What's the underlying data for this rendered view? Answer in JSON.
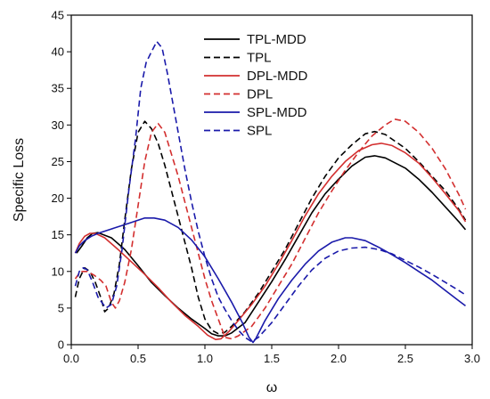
{
  "chart_data": {
    "type": "line",
    "title": "",
    "xlabel": "ω",
    "ylabel": "Specific Loss",
    "xlim": [
      0,
      3.0
    ],
    "ylim": [
      0,
      45
    ],
    "xticks": [
      "0.0",
      "0.5",
      "1.0",
      "1.5",
      "2.0",
      "2.5",
      "3.0"
    ],
    "yticks": [
      "0",
      "5",
      "10",
      "15",
      "20",
      "25",
      "30",
      "35",
      "40",
      "45"
    ],
    "legend_position": "top-center",
    "grid": false,
    "series": [
      {
        "name": "TPL-MDD",
        "color": "#000000",
        "dash": "solid",
        "points": [
          [
            0.04,
            12.5
          ],
          [
            0.08,
            13.5
          ],
          [
            0.12,
            14.6
          ],
          [
            0.16,
            15.2
          ],
          [
            0.2,
            15.3
          ],
          [
            0.3,
            14.6
          ],
          [
            0.4,
            13.0
          ],
          [
            0.5,
            10.8
          ],
          [
            0.6,
            8.5
          ],
          [
            0.7,
            6.7
          ],
          [
            0.8,
            5.0
          ],
          [
            0.9,
            3.5
          ],
          [
            1.0,
            2.2
          ],
          [
            1.05,
            1.5
          ],
          [
            1.1,
            1.2
          ],
          [
            1.15,
            1.2
          ],
          [
            1.2,
            1.6
          ],
          [
            1.3,
            3.0
          ],
          [
            1.4,
            5.8
          ],
          [
            1.5,
            8.6
          ],
          [
            1.6,
            11.6
          ],
          [
            1.7,
            14.8
          ],
          [
            1.8,
            18.0
          ],
          [
            1.9,
            20.6
          ],
          [
            2.0,
            22.6
          ],
          [
            2.1,
            24.4
          ],
          [
            2.2,
            25.6
          ],
          [
            2.27,
            25.8
          ],
          [
            2.35,
            25.5
          ],
          [
            2.5,
            24.1
          ],
          [
            2.6,
            22.6
          ],
          [
            2.7,
            20.8
          ],
          [
            2.8,
            18.8
          ],
          [
            2.9,
            16.8
          ],
          [
            2.95,
            15.7
          ]
        ]
      },
      {
        "name": "TPL",
        "color": "#000000",
        "dash": "dashed",
        "points": [
          [
            0.03,
            6.5
          ],
          [
            0.06,
            9.0
          ],
          [
            0.1,
            10.5
          ],
          [
            0.14,
            10.0
          ],
          [
            0.18,
            8.5
          ],
          [
            0.22,
            6.5
          ],
          [
            0.25,
            4.5
          ],
          [
            0.28,
            5.0
          ],
          [
            0.32,
            7.0
          ],
          [
            0.36,
            11.0
          ],
          [
            0.4,
            17.0
          ],
          [
            0.45,
            24.0
          ],
          [
            0.5,
            29.0
          ],
          [
            0.55,
            30.5
          ],
          [
            0.6,
            29.5
          ],
          [
            0.65,
            27.5
          ],
          [
            0.7,
            24.5
          ],
          [
            0.75,
            21.0
          ],
          [
            0.8,
            17.5
          ],
          [
            0.85,
            14.0
          ],
          [
            0.9,
            10.5
          ],
          [
            0.95,
            6.5
          ],
          [
            1.0,
            3.5
          ],
          [
            1.05,
            2.0
          ],
          [
            1.1,
            1.5
          ],
          [
            1.15,
            1.7
          ],
          [
            1.2,
            2.5
          ],
          [
            1.3,
            4.5
          ],
          [
            1.4,
            7.0
          ],
          [
            1.5,
            10.0
          ],
          [
            1.6,
            13.0
          ],
          [
            1.7,
            16.5
          ],
          [
            1.8,
            20.0
          ],
          [
            1.9,
            23.0
          ],
          [
            2.0,
            25.5
          ],
          [
            2.1,
            27.3
          ],
          [
            2.2,
            28.8
          ],
          [
            2.27,
            29.1
          ],
          [
            2.35,
            28.7
          ],
          [
            2.5,
            26.8
          ],
          [
            2.6,
            25.0
          ],
          [
            2.7,
            23.0
          ],
          [
            2.8,
            21.0
          ],
          [
            2.9,
            18.5
          ],
          [
            2.95,
            17.0
          ]
        ]
      },
      {
        "name": "DPL-MDD",
        "color": "#d32f2f",
        "dash": "solid",
        "points": [
          [
            0.03,
            12.5
          ],
          [
            0.06,
            13.8
          ],
          [
            0.1,
            14.8
          ],
          [
            0.14,
            15.2
          ],
          [
            0.18,
            15.2
          ],
          [
            0.25,
            14.6
          ],
          [
            0.35,
            13.0
          ],
          [
            0.45,
            11.3
          ],
          [
            0.55,
            9.6
          ],
          [
            0.65,
            7.8
          ],
          [
            0.75,
            5.8
          ],
          [
            0.85,
            4.0
          ],
          [
            0.95,
            2.5
          ],
          [
            1.02,
            1.3
          ],
          [
            1.08,
            0.7
          ],
          [
            1.12,
            0.8
          ],
          [
            1.18,
            1.8
          ],
          [
            1.25,
            3.3
          ],
          [
            1.35,
            5.5
          ],
          [
            1.45,
            8.0
          ],
          [
            1.55,
            11.0
          ],
          [
            1.65,
            14.2
          ],
          [
            1.75,
            17.6
          ],
          [
            1.85,
            20.6
          ],
          [
            1.95,
            23.0
          ],
          [
            2.05,
            25.0
          ],
          [
            2.15,
            26.5
          ],
          [
            2.25,
            27.3
          ],
          [
            2.32,
            27.5
          ],
          [
            2.4,
            27.2
          ],
          [
            2.5,
            26.2
          ],
          [
            2.6,
            24.8
          ],
          [
            2.7,
            22.8
          ],
          [
            2.8,
            20.6
          ],
          [
            2.9,
            18.3
          ],
          [
            2.95,
            16.8
          ]
        ]
      },
      {
        "name": "DPL",
        "color": "#d32f2f",
        "dash": "dashed",
        "points": [
          [
            0.03,
            9.0
          ],
          [
            0.07,
            10.0
          ],
          [
            0.12,
            10.0
          ],
          [
            0.17,
            9.5
          ],
          [
            0.22,
            8.8
          ],
          [
            0.26,
            8.0
          ],
          [
            0.3,
            5.8
          ],
          [
            0.33,
            5.0
          ],
          [
            0.36,
            6.0
          ],
          [
            0.4,
            8.5
          ],
          [
            0.45,
            13.0
          ],
          [
            0.5,
            19.0
          ],
          [
            0.55,
            25.0
          ],
          [
            0.6,
            29.0
          ],
          [
            0.65,
            30.2
          ],
          [
            0.7,
            29.0
          ],
          [
            0.75,
            26.0
          ],
          [
            0.8,
            23.0
          ],
          [
            0.85,
            19.5
          ],
          [
            0.9,
            16.0
          ],
          [
            0.95,
            12.5
          ],
          [
            1.0,
            9.0
          ],
          [
            1.05,
            6.0
          ],
          [
            1.1,
            3.5
          ],
          [
            1.15,
            1.0
          ],
          [
            1.2,
            0.8
          ],
          [
            1.25,
            1.2
          ],
          [
            1.35,
            2.5
          ],
          [
            1.45,
            5.0
          ],
          [
            1.55,
            8.0
          ],
          [
            1.65,
            11.0
          ],
          [
            1.75,
            14.5
          ],
          [
            1.85,
            18.0
          ],
          [
            1.95,
            21.0
          ],
          [
            2.05,
            23.8
          ],
          [
            2.15,
            26.3
          ],
          [
            2.25,
            28.5
          ],
          [
            2.35,
            30.0
          ],
          [
            2.42,
            30.8
          ],
          [
            2.5,
            30.5
          ],
          [
            2.6,
            29.0
          ],
          [
            2.7,
            26.8
          ],
          [
            2.8,
            24.0
          ],
          [
            2.9,
            20.5
          ],
          [
            2.95,
            18.5
          ]
        ]
      },
      {
        "name": "SPL-MDD",
        "color": "#1a1aaa",
        "dash": "solid",
        "points": [
          [
            0.03,
            12.5
          ],
          [
            0.06,
            13.5
          ],
          [
            0.1,
            14.2
          ],
          [
            0.15,
            14.8
          ],
          [
            0.2,
            15.2
          ],
          [
            0.3,
            15.8
          ],
          [
            0.4,
            16.4
          ],
          [
            0.5,
            17.0
          ],
          [
            0.55,
            17.3
          ],
          [
            0.62,
            17.3
          ],
          [
            0.7,
            17.0
          ],
          [
            0.8,
            16.0
          ],
          [
            0.9,
            14.3
          ],
          [
            1.0,
            12.0
          ],
          [
            1.1,
            9.0
          ],
          [
            1.2,
            5.8
          ],
          [
            1.28,
            3.0
          ],
          [
            1.33,
            1.0
          ],
          [
            1.36,
            0.3
          ],
          [
            1.38,
            0.8
          ],
          [
            1.45,
            3.3
          ],
          [
            1.55,
            6.3
          ],
          [
            1.65,
            8.8
          ],
          [
            1.75,
            11.0
          ],
          [
            1.85,
            12.8
          ],
          [
            1.95,
            14.0
          ],
          [
            2.05,
            14.6
          ],
          [
            2.1,
            14.6
          ],
          [
            2.2,
            14.2
          ],
          [
            2.3,
            13.3
          ],
          [
            2.4,
            12.3
          ],
          [
            2.5,
            11.2
          ],
          [
            2.6,
            10.0
          ],
          [
            2.7,
            8.8
          ],
          [
            2.8,
            7.4
          ],
          [
            2.9,
            6.0
          ],
          [
            2.95,
            5.3
          ]
        ]
      },
      {
        "name": "SPL",
        "color": "#1a1aaa",
        "dash": "dashed",
        "points": [
          [
            0.03,
            8.0
          ],
          [
            0.06,
            10.0
          ],
          [
            0.09,
            10.5
          ],
          [
            0.12,
            10.2
          ],
          [
            0.16,
            8.5
          ],
          [
            0.2,
            6.5
          ],
          [
            0.24,
            5.5
          ],
          [
            0.26,
            5.0
          ],
          [
            0.3,
            5.5
          ],
          [
            0.34,
            8.0
          ],
          [
            0.38,
            13.0
          ],
          [
            0.43,
            21.0
          ],
          [
            0.48,
            28.0
          ],
          [
            0.52,
            35.0
          ],
          [
            0.56,
            38.5
          ],
          [
            0.6,
            40.0
          ],
          [
            0.64,
            41.4
          ],
          [
            0.68,
            40.5
          ],
          [
            0.72,
            37.0
          ],
          [
            0.76,
            33.0
          ],
          [
            0.8,
            29.0
          ],
          [
            0.85,
            24.0
          ],
          [
            0.9,
            19.5
          ],
          [
            0.95,
            15.5
          ],
          [
            1.0,
            12.0
          ],
          [
            1.05,
            9.0
          ],
          [
            1.1,
            6.5
          ],
          [
            1.15,
            4.8
          ],
          [
            1.2,
            3.3
          ],
          [
            1.25,
            2.0
          ],
          [
            1.3,
            1.0
          ],
          [
            1.35,
            0.4
          ],
          [
            1.4,
            1.0
          ],
          [
            1.5,
            3.0
          ],
          [
            1.6,
            5.5
          ],
          [
            1.7,
            8.0
          ],
          [
            1.8,
            10.2
          ],
          [
            1.9,
            11.8
          ],
          [
            2.0,
            12.8
          ],
          [
            2.1,
            13.2
          ],
          [
            2.2,
            13.3
          ],
          [
            2.3,
            13.0
          ],
          [
            2.4,
            12.4
          ],
          [
            2.5,
            11.5
          ],
          [
            2.6,
            10.6
          ],
          [
            2.7,
            9.6
          ],
          [
            2.8,
            8.5
          ],
          [
            2.9,
            7.4
          ],
          [
            2.95,
            6.8
          ]
        ]
      }
    ]
  }
}
